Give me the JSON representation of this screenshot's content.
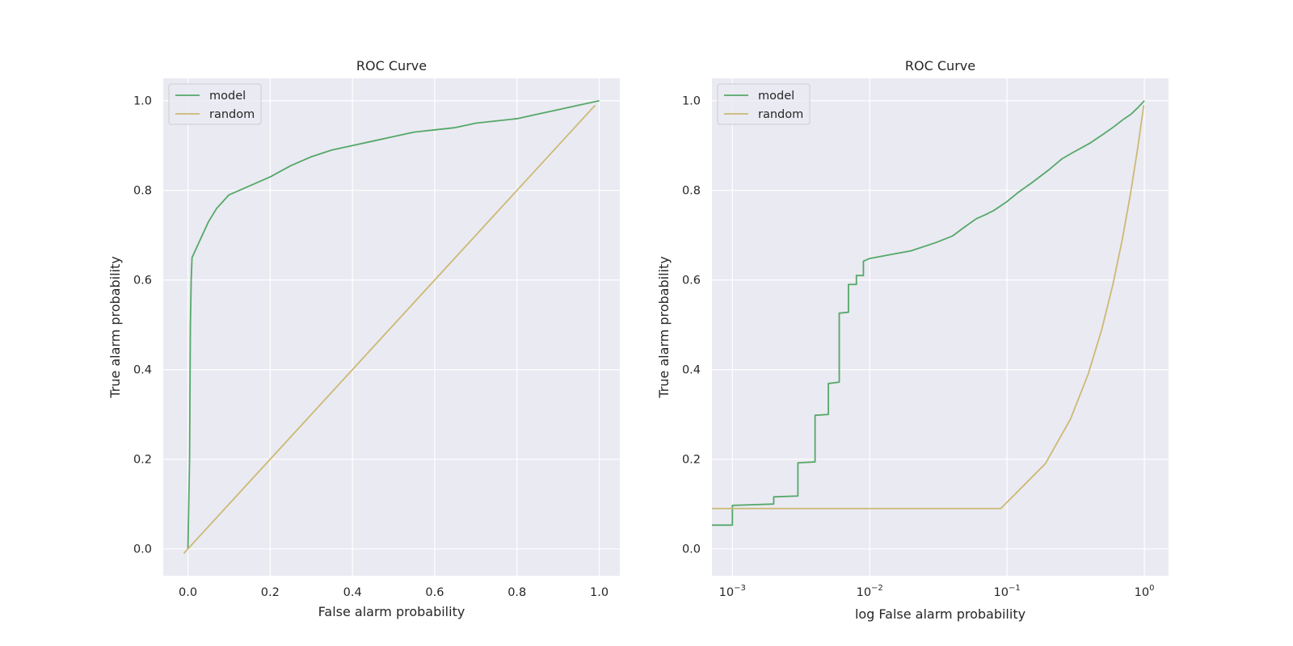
{
  "colors": {
    "model": "#55a868",
    "random": "#ccb974",
    "background": "#eaeaf2",
    "grid": "#ffffff"
  },
  "chart_data": [
    {
      "type": "line",
      "title": "ROC Curve",
      "xlabel": "False alarm probability",
      "ylabel": "True alarm probability",
      "xscale": "linear",
      "xlim": [
        -0.06,
        1.05
      ],
      "ylim": [
        -0.06,
        1.05
      ],
      "xticks": [
        0.0,
        0.2,
        0.4,
        0.6,
        0.8,
        1.0
      ],
      "xtick_labels": [
        "0.0",
        "0.2",
        "0.4",
        "0.6",
        "0.8",
        "1.0"
      ],
      "yticks": [
        0.0,
        0.2,
        0.4,
        0.6,
        0.8,
        1.0
      ],
      "ytick_labels": [
        "0.0",
        "0.2",
        "0.4",
        "0.6",
        "0.8",
        "1.0"
      ],
      "grid": true,
      "legend": "upper-left",
      "series": [
        {
          "name": "model",
          "color": "#55a868",
          "x": [
            0.0,
            0.002,
            0.004,
            0.005,
            0.006,
            0.008,
            0.01,
            0.02,
            0.03,
            0.04,
            0.05,
            0.07,
            0.1,
            0.15,
            0.2,
            0.25,
            0.3,
            0.35,
            0.4,
            0.45,
            0.5,
            0.55,
            0.6,
            0.65,
            0.7,
            0.75,
            0.8,
            0.85,
            0.9,
            0.95,
            1.0
          ],
          "y": [
            0.0,
            0.1,
            0.2,
            0.35,
            0.5,
            0.6,
            0.65,
            0.67,
            0.69,
            0.71,
            0.73,
            0.76,
            0.79,
            0.81,
            0.83,
            0.855,
            0.875,
            0.89,
            0.9,
            0.91,
            0.92,
            0.93,
            0.935,
            0.94,
            0.95,
            0.955,
            0.96,
            0.97,
            0.98,
            0.99,
            1.0
          ]
        },
        {
          "name": "random",
          "color": "#ccb974",
          "x": [
            -0.01,
            0.99
          ],
          "y": [
            -0.01,
            0.99
          ]
        }
      ]
    },
    {
      "type": "line",
      "title": "ROC Curve",
      "xlabel": "log False alarm probability",
      "ylabel": "True alarm probability",
      "xscale": "log",
      "xlim": [
        0.00071,
        1.5
      ],
      "ylim": [
        -0.06,
        1.05
      ],
      "xticks": [
        0.001,
        0.01,
        0.1,
        1
      ],
      "xtick_labels": [
        {
          "base": "10",
          "exp": "−3"
        },
        {
          "base": "10",
          "exp": "−2"
        },
        {
          "base": "10",
          "exp": "−1"
        },
        {
          "base": "10",
          "exp": "0"
        }
      ],
      "yticks": [
        0.0,
        0.2,
        0.4,
        0.6,
        0.8,
        1.0
      ],
      "ytick_labels": [
        "0.0",
        "0.2",
        "0.4",
        "0.6",
        "0.8",
        "1.0"
      ],
      "grid": true,
      "legend": "upper-left",
      "series": [
        {
          "name": "model",
          "color": "#55a868",
          "x": [
            0.0007,
            0.001,
            0.001,
            0.002,
            0.002,
            0.003,
            0.003,
            0.004,
            0.004,
            0.005,
            0.005,
            0.006,
            0.006,
            0.007,
            0.007,
            0.008,
            0.008,
            0.009,
            0.009,
            0.01,
            0.015,
            0.02,
            0.03,
            0.04,
            0.05,
            0.06,
            0.07,
            0.08,
            0.1,
            0.12,
            0.15,
            0.2,
            0.25,
            0.3,
            0.4,
            0.5,
            0.6,
            0.7,
            0.8,
            0.9,
            1.0
          ],
          "y": [
            0.053,
            0.053,
            0.097,
            0.1,
            0.116,
            0.118,
            0.192,
            0.194,
            0.298,
            0.3,
            0.369,
            0.372,
            0.526,
            0.528,
            0.59,
            0.59,
            0.61,
            0.61,
            0.642,
            0.648,
            0.658,
            0.665,
            0.683,
            0.698,
            0.72,
            0.737,
            0.746,
            0.755,
            0.775,
            0.795,
            0.816,
            0.845,
            0.87,
            0.884,
            0.905,
            0.925,
            0.942,
            0.958,
            0.97,
            0.985,
            1.0
          ]
        },
        {
          "name": "random",
          "color": "#ccb974",
          "x": [
            0.0007,
            0.09,
            0.19,
            0.29,
            0.39,
            0.49,
            0.59,
            0.69,
            0.79,
            0.89,
            0.99
          ],
          "y": [
            0.09,
            0.09,
            0.19,
            0.29,
            0.39,
            0.49,
            0.59,
            0.69,
            0.79,
            0.89,
            0.99
          ]
        }
      ]
    }
  ]
}
